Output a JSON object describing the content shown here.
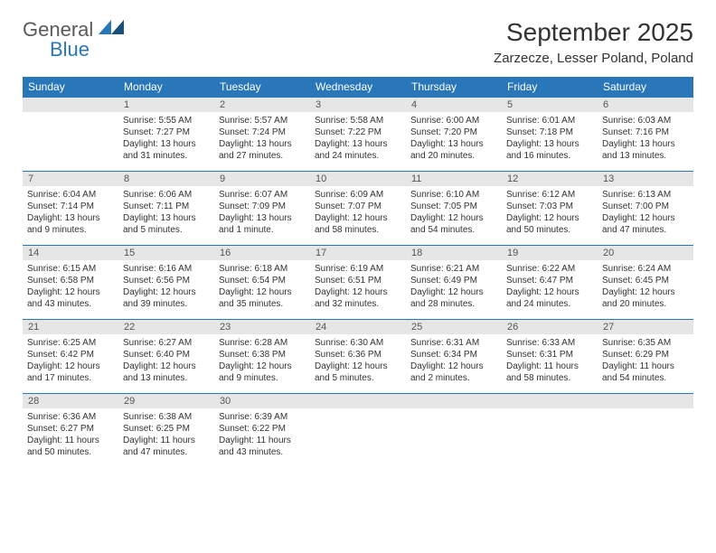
{
  "logo": {
    "text1": "General",
    "text2": "Blue"
  },
  "title": "September 2025",
  "location": "Zarzecze, Lesser Poland, Poland",
  "colors": {
    "header_bg": "#2976b8",
    "header_text": "#ffffff",
    "daynum_bg": "#e6e6e6",
    "border": "#2976b8",
    "text": "#333333"
  },
  "weekdays": [
    "Sunday",
    "Monday",
    "Tuesday",
    "Wednesday",
    "Thursday",
    "Friday",
    "Saturday"
  ],
  "weeks": [
    [
      null,
      {
        "n": "1",
        "sr": "Sunrise: 5:55 AM",
        "ss": "Sunset: 7:27 PM",
        "dl": "Daylight: 13 hours and 31 minutes."
      },
      {
        "n": "2",
        "sr": "Sunrise: 5:57 AM",
        "ss": "Sunset: 7:24 PM",
        "dl": "Daylight: 13 hours and 27 minutes."
      },
      {
        "n": "3",
        "sr": "Sunrise: 5:58 AM",
        "ss": "Sunset: 7:22 PM",
        "dl": "Daylight: 13 hours and 24 minutes."
      },
      {
        "n": "4",
        "sr": "Sunrise: 6:00 AM",
        "ss": "Sunset: 7:20 PM",
        "dl": "Daylight: 13 hours and 20 minutes."
      },
      {
        "n": "5",
        "sr": "Sunrise: 6:01 AM",
        "ss": "Sunset: 7:18 PM",
        "dl": "Daylight: 13 hours and 16 minutes."
      },
      {
        "n": "6",
        "sr": "Sunrise: 6:03 AM",
        "ss": "Sunset: 7:16 PM",
        "dl": "Daylight: 13 hours and 13 minutes."
      }
    ],
    [
      {
        "n": "7",
        "sr": "Sunrise: 6:04 AM",
        "ss": "Sunset: 7:14 PM",
        "dl": "Daylight: 13 hours and 9 minutes."
      },
      {
        "n": "8",
        "sr": "Sunrise: 6:06 AM",
        "ss": "Sunset: 7:11 PM",
        "dl": "Daylight: 13 hours and 5 minutes."
      },
      {
        "n": "9",
        "sr": "Sunrise: 6:07 AM",
        "ss": "Sunset: 7:09 PM",
        "dl": "Daylight: 13 hours and 1 minute."
      },
      {
        "n": "10",
        "sr": "Sunrise: 6:09 AM",
        "ss": "Sunset: 7:07 PM",
        "dl": "Daylight: 12 hours and 58 minutes."
      },
      {
        "n": "11",
        "sr": "Sunrise: 6:10 AM",
        "ss": "Sunset: 7:05 PM",
        "dl": "Daylight: 12 hours and 54 minutes."
      },
      {
        "n": "12",
        "sr": "Sunrise: 6:12 AM",
        "ss": "Sunset: 7:03 PM",
        "dl": "Daylight: 12 hours and 50 minutes."
      },
      {
        "n": "13",
        "sr": "Sunrise: 6:13 AM",
        "ss": "Sunset: 7:00 PM",
        "dl": "Daylight: 12 hours and 47 minutes."
      }
    ],
    [
      {
        "n": "14",
        "sr": "Sunrise: 6:15 AM",
        "ss": "Sunset: 6:58 PM",
        "dl": "Daylight: 12 hours and 43 minutes."
      },
      {
        "n": "15",
        "sr": "Sunrise: 6:16 AM",
        "ss": "Sunset: 6:56 PM",
        "dl": "Daylight: 12 hours and 39 minutes."
      },
      {
        "n": "16",
        "sr": "Sunrise: 6:18 AM",
        "ss": "Sunset: 6:54 PM",
        "dl": "Daylight: 12 hours and 35 minutes."
      },
      {
        "n": "17",
        "sr": "Sunrise: 6:19 AM",
        "ss": "Sunset: 6:51 PM",
        "dl": "Daylight: 12 hours and 32 minutes."
      },
      {
        "n": "18",
        "sr": "Sunrise: 6:21 AM",
        "ss": "Sunset: 6:49 PM",
        "dl": "Daylight: 12 hours and 28 minutes."
      },
      {
        "n": "19",
        "sr": "Sunrise: 6:22 AM",
        "ss": "Sunset: 6:47 PM",
        "dl": "Daylight: 12 hours and 24 minutes."
      },
      {
        "n": "20",
        "sr": "Sunrise: 6:24 AM",
        "ss": "Sunset: 6:45 PM",
        "dl": "Daylight: 12 hours and 20 minutes."
      }
    ],
    [
      {
        "n": "21",
        "sr": "Sunrise: 6:25 AM",
        "ss": "Sunset: 6:42 PM",
        "dl": "Daylight: 12 hours and 17 minutes."
      },
      {
        "n": "22",
        "sr": "Sunrise: 6:27 AM",
        "ss": "Sunset: 6:40 PM",
        "dl": "Daylight: 12 hours and 13 minutes."
      },
      {
        "n": "23",
        "sr": "Sunrise: 6:28 AM",
        "ss": "Sunset: 6:38 PM",
        "dl": "Daylight: 12 hours and 9 minutes."
      },
      {
        "n": "24",
        "sr": "Sunrise: 6:30 AM",
        "ss": "Sunset: 6:36 PM",
        "dl": "Daylight: 12 hours and 5 minutes."
      },
      {
        "n": "25",
        "sr": "Sunrise: 6:31 AM",
        "ss": "Sunset: 6:34 PM",
        "dl": "Daylight: 12 hours and 2 minutes."
      },
      {
        "n": "26",
        "sr": "Sunrise: 6:33 AM",
        "ss": "Sunset: 6:31 PM",
        "dl": "Daylight: 11 hours and 58 minutes."
      },
      {
        "n": "27",
        "sr": "Sunrise: 6:35 AM",
        "ss": "Sunset: 6:29 PM",
        "dl": "Daylight: 11 hours and 54 minutes."
      }
    ],
    [
      {
        "n": "28",
        "sr": "Sunrise: 6:36 AM",
        "ss": "Sunset: 6:27 PM",
        "dl": "Daylight: 11 hours and 50 minutes."
      },
      {
        "n": "29",
        "sr": "Sunrise: 6:38 AM",
        "ss": "Sunset: 6:25 PM",
        "dl": "Daylight: 11 hours and 47 minutes."
      },
      {
        "n": "30",
        "sr": "Sunrise: 6:39 AM",
        "ss": "Sunset: 6:22 PM",
        "dl": "Daylight: 11 hours and 43 minutes."
      },
      null,
      null,
      null,
      null
    ]
  ]
}
